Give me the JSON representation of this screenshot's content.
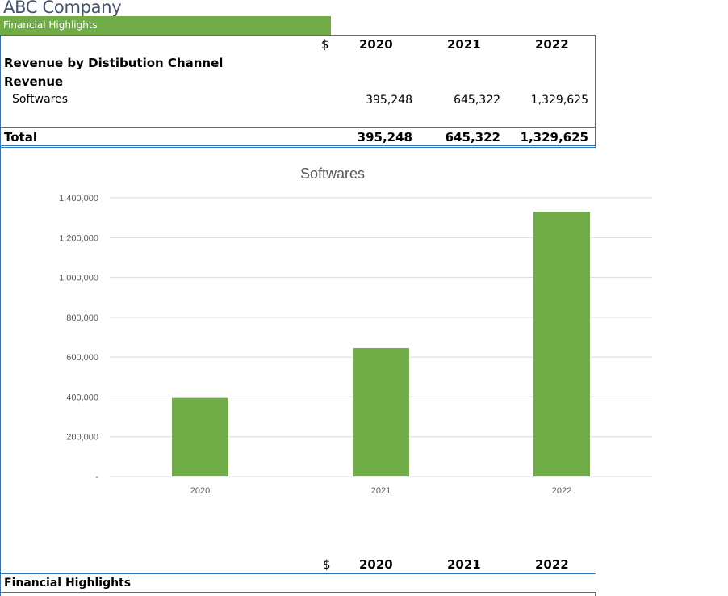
{
  "company": "ABC Company",
  "section": "Financial Highlights",
  "table": {
    "currency": "$",
    "years": [
      "2020",
      "2021",
      "2022"
    ],
    "heading": "Revenue by Distibution Channel",
    "subheading": "Revenue",
    "rows": [
      {
        "label": "Softwares",
        "values": [
          "395,248",
          "645,322",
          "1,329,625"
        ]
      }
    ],
    "total": {
      "label": "Total",
      "values": [
        "395,248",
        "645,322",
        "1,329,625"
      ]
    }
  },
  "chart_data": {
    "type": "bar",
    "title": "Softwares",
    "categories": [
      "2020",
      "2021",
      "2022"
    ],
    "values": [
      395248,
      645322,
      1329625
    ],
    "ylim": [
      0,
      1400000
    ],
    "yticks": [
      0,
      200000,
      400000,
      600000,
      800000,
      1000000,
      1200000,
      1400000
    ],
    "ytick_labels": [
      "-",
      "200,000",
      "400,000",
      "600,000",
      "800,000",
      "1,000,000",
      "1,200,000",
      "1,400,000"
    ],
    "grid": true,
    "legend": "none",
    "bar_color": "#70ad47"
  },
  "footer": {
    "currency": "$",
    "years": [
      "2020",
      "2021",
      "2022"
    ],
    "label": "Financial Highlights"
  }
}
